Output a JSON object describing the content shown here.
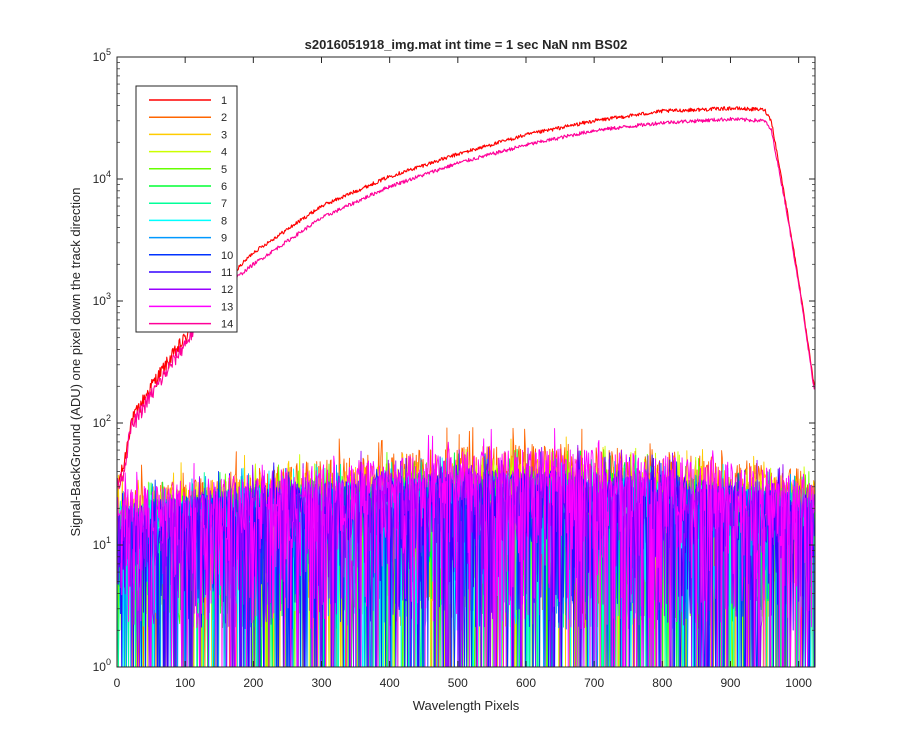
{
  "chart_data": {
    "type": "line",
    "title": "s2016051918_img.mat int time = 1 sec  NaN nm BS02",
    "xlabel": "Wavelength Pixels",
    "ylabel": "Signal-BackGround (ADU) one pixel down the track direction",
    "xlim": [
      0,
      1024
    ],
    "ylim": [
      1,
      100000
    ],
    "y_scale": "log",
    "grid": false,
    "legend_position": "top-left",
    "x_ticks": [
      {
        "value": 0,
        "label": "0"
      },
      {
        "value": 100,
        "label": "100"
      },
      {
        "value": 200,
        "label": "200"
      },
      {
        "value": 300,
        "label": "300"
      },
      {
        "value": 400,
        "label": "400"
      },
      {
        "value": 500,
        "label": "500"
      },
      {
        "value": 600,
        "label": "600"
      },
      {
        "value": 700,
        "label": "700"
      },
      {
        "value": 800,
        "label": "800"
      },
      {
        "value": 900,
        "label": "900"
      },
      {
        "value": 1000,
        "label": "1000"
      }
    ],
    "y_ticks": [
      {
        "value": 1,
        "base": "10",
        "exp": "0"
      },
      {
        "value": 10,
        "base": "10",
        "exp": "1"
      },
      {
        "value": 100,
        "base": "10",
        "exp": "2"
      },
      {
        "value": 1000,
        "base": "10",
        "exp": "3"
      },
      {
        "value": 10000,
        "base": "10",
        "exp": "4"
      },
      {
        "value": 100000,
        "base": "10",
        "exp": "5"
      }
    ],
    "series": [
      {
        "name": "1",
        "color": "#ff0000",
        "profile": "signal",
        "x": [
          0,
          10,
          20,
          50,
          100,
          150,
          200,
          300,
          400,
          500,
          600,
          700,
          800,
          900,
          950,
          960,
          980,
          1000,
          1024
        ],
        "y": [
          30,
          45,
          100,
          200,
          500,
          1300,
          2500,
          6000,
          10500,
          16000,
          23000,
          30000,
          36000,
          38000,
          37000,
          30000,
          7000,
          1500,
          180
        ]
      },
      {
        "name": "2",
        "color": "#ff6600",
        "profile": "noise",
        "band": [
          [
            0,
            28
          ],
          [
            200,
            42
          ],
          [
            500,
            65
          ],
          [
            650,
            68
          ],
          [
            800,
            60
          ],
          [
            1024,
            40
          ]
        ]
      },
      {
        "name": "3",
        "color": "#ffcc00",
        "profile": "noise",
        "band": [
          [
            0,
            26
          ],
          [
            200,
            38
          ],
          [
            500,
            50
          ],
          [
            650,
            52
          ],
          [
            800,
            48
          ],
          [
            1024,
            34
          ]
        ]
      },
      {
        "name": "4",
        "color": "#ccff00",
        "profile": "noise",
        "band": [
          [
            0,
            24
          ],
          [
            200,
            35
          ],
          [
            500,
            45
          ],
          [
            650,
            46
          ],
          [
            800,
            42
          ],
          [
            1024,
            30
          ]
        ]
      },
      {
        "name": "5",
        "color": "#66ff00",
        "profile": "noise",
        "band": [
          [
            0,
            22
          ],
          [
            200,
            33
          ],
          [
            500,
            42
          ],
          [
            650,
            43
          ],
          [
            800,
            40
          ],
          [
            1024,
            28
          ]
        ]
      },
      {
        "name": "6",
        "color": "#00ff33",
        "profile": "noise",
        "band": [
          [
            0,
            21
          ],
          [
            200,
            32
          ],
          [
            500,
            40
          ],
          [
            650,
            41
          ],
          [
            800,
            38
          ],
          [
            1024,
            27
          ]
        ]
      },
      {
        "name": "7",
        "color": "#00ff99",
        "profile": "noise",
        "band": [
          [
            0,
            20
          ],
          [
            200,
            30
          ],
          [
            500,
            38
          ],
          [
            650,
            39
          ],
          [
            800,
            36
          ],
          [
            1024,
            26
          ]
        ]
      },
      {
        "name": "8",
        "color": "#00ffff",
        "profile": "noise",
        "band": [
          [
            0,
            20
          ],
          [
            200,
            30
          ],
          [
            500,
            37
          ],
          [
            650,
            38
          ],
          [
            800,
            35
          ],
          [
            1024,
            25
          ]
        ]
      },
      {
        "name": "9",
        "color": "#0099ff",
        "profile": "noise",
        "band": [
          [
            0,
            20
          ],
          [
            200,
            30
          ],
          [
            500,
            37
          ],
          [
            650,
            38
          ],
          [
            800,
            35
          ],
          [
            1024,
            25
          ]
        ]
      },
      {
        "name": "10",
        "color": "#0033ff",
        "profile": "noise",
        "band": [
          [
            0,
            20
          ],
          [
            200,
            30
          ],
          [
            500,
            38
          ],
          [
            650,
            39
          ],
          [
            800,
            36
          ],
          [
            1024,
            26
          ]
        ]
      },
      {
        "name": "11",
        "color": "#3300ff",
        "profile": "noise",
        "band": [
          [
            0,
            21
          ],
          [
            200,
            31
          ],
          [
            500,
            40
          ],
          [
            650,
            41
          ],
          [
            800,
            38
          ],
          [
            1024,
            27
          ]
        ]
      },
      {
        "name": "12",
        "color": "#9900ff",
        "profile": "noise",
        "band": [
          [
            0,
            22
          ],
          [
            200,
            34
          ],
          [
            500,
            45
          ],
          [
            650,
            46
          ],
          [
            800,
            42
          ],
          [
            1024,
            30
          ]
        ]
      },
      {
        "name": "13",
        "color": "#ff00ff",
        "profile": "noise",
        "band": [
          [
            0,
            28
          ],
          [
            200,
            40
          ],
          [
            500,
            58
          ],
          [
            650,
            62
          ],
          [
            800,
            55
          ],
          [
            1024,
            38
          ]
        ]
      },
      {
        "name": "14",
        "color": "#ff0099",
        "profile": "signal",
        "x": [
          0,
          10,
          20,
          50,
          100,
          150,
          200,
          300,
          400,
          500,
          600,
          700,
          800,
          900,
          950,
          960,
          980,
          1000,
          1024
        ],
        "y": [
          30,
          40,
          90,
          170,
          450,
          1200,
          2000,
          4800,
          8700,
          13500,
          19000,
          25000,
          29000,
          31000,
          30000,
          25000,
          6500,
          1400,
          170
        ]
      }
    ]
  }
}
